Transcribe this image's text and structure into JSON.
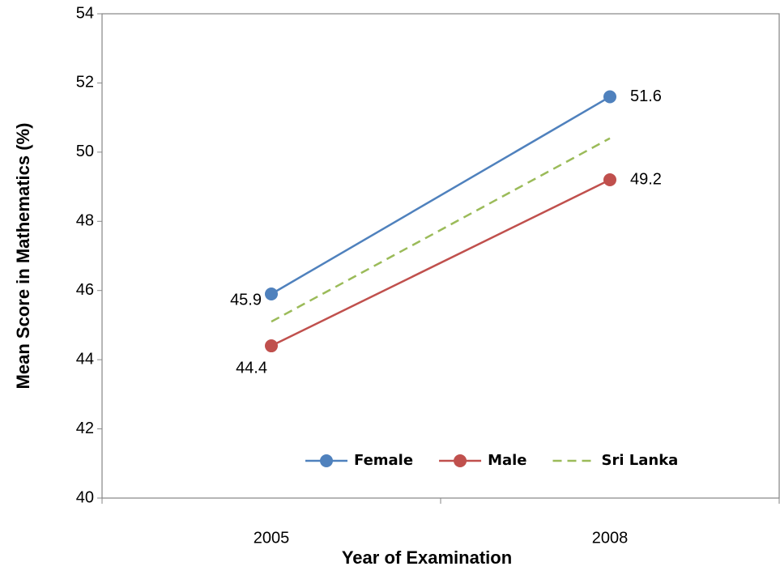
{
  "chart_data": {
    "type": "line",
    "x_label": "Year of Examination",
    "y_label": "Mean Score in Mathematics (%)",
    "categories": [
      "2005",
      "2008"
    ],
    "series": [
      {
        "name": "Female",
        "color": "#4f81bd",
        "values": [
          45.9,
          51.6
        ],
        "marker": "circle",
        "data_labels": true
      },
      {
        "name": "Male",
        "color": "#c0504d",
        "values": [
          44.4,
          49.2
        ],
        "marker": "circle",
        "data_labels": true
      },
      {
        "name": "Sri Lanka",
        "color": "#9bbb59",
        "values": [
          45.1,
          50.4
        ],
        "dashed": true
      }
    ],
    "ylim": [
      40,
      54
    ],
    "yticks": [
      40,
      42,
      44,
      46,
      48,
      50,
      52,
      54
    ],
    "legend": "lower right"
  }
}
